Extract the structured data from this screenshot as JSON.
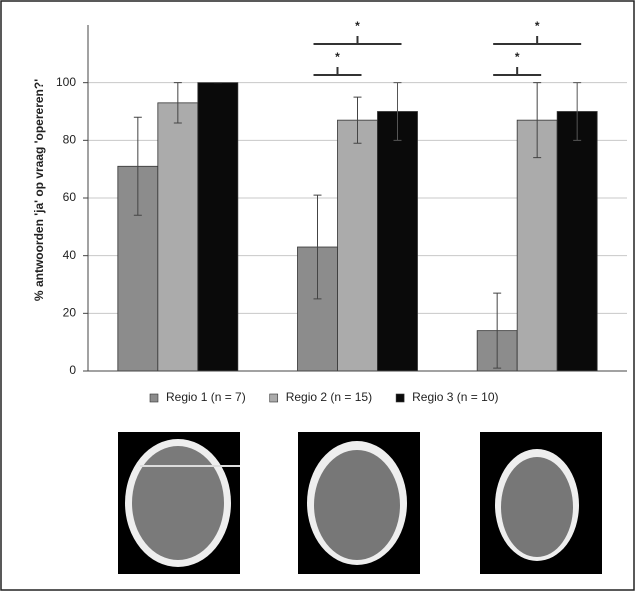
{
  "chart_data": {
    "type": "bar",
    "y_label": "% antwoorden 'ja' op vraag 'opereren?'",
    "categories": [
      null,
      null,
      null
    ],
    "series": [
      {
        "name": "Regio 1 (n = 7)",
        "color": "#8c8c8c",
        "values": [
          71,
          43,
          14
        ],
        "errors": [
          17,
          18,
          13
        ]
      },
      {
        "name": "Regio 2 (n = 15)",
        "color": "#ababab",
        "values": [
          93,
          87,
          87
        ],
        "errors": [
          7,
          8,
          13
        ]
      },
      {
        "name": "Regio 3 (n = 10)",
        "color": "#0a0a0a",
        "values": [
          100,
          90,
          90
        ],
        "errors": [
          0,
          10,
          10
        ]
      }
    ],
    "annotations": [
      "*",
      "*",
      "*",
      "*"
    ],
    "ylim": [
      0,
      120
    ],
    "yticks": [
      0,
      20,
      40,
      60,
      80,
      100
    ],
    "grid": true,
    "legend": "bottom"
  }
}
